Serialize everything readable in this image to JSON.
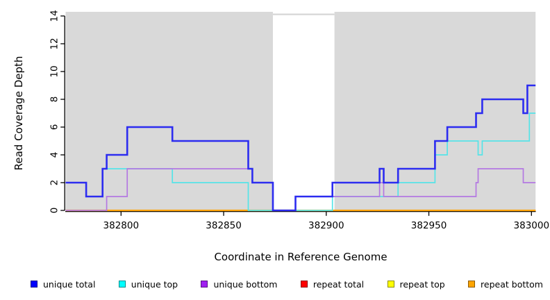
{
  "chart_data": {
    "type": "line",
    "subtype": "step",
    "title": "",
    "xlabel": "Coordinate in Reference Genome",
    "ylabel": "Read Coverage Depth",
    "xlim": [
      382772,
      383002
    ],
    "ylim": [
      0,
      14.3
    ],
    "x_ticks": [
      "382800",
      "382850",
      "382900",
      "382950",
      "383000"
    ],
    "x_tick_values": [
      382800,
      382850,
      382900,
      382950,
      383000
    ],
    "y_ticks": [
      "0",
      "2",
      "4",
      "6",
      "8",
      "10",
      "12",
      "14"
    ],
    "y_tick_values": [
      0,
      2,
      4,
      6,
      8,
      10,
      12,
      14
    ],
    "grid": false,
    "legend_position": "bottom",
    "background": {
      "band_color": "#d9d9d9",
      "shaded_regions": [
        [
          382773,
          382874
        ],
        [
          382904,
          383002
        ]
      ],
      "white_gap": [
        382874,
        382904
      ]
    },
    "draw_order": [
      "repeat total",
      "repeat top",
      "repeat bottom",
      "unique top",
      "unique bottom",
      "unique total"
    ],
    "series": [
      {
        "name": "unique total",
        "color": "#2c2cf0",
        "width": 2.6,
        "x_end": 383002,
        "points": [
          [
            382773,
            2
          ],
          [
            382783,
            1
          ],
          [
            382791,
            3
          ],
          [
            382793,
            4
          ],
          [
            382803,
            6
          ],
          [
            382825,
            5
          ],
          [
            382862,
            3
          ],
          [
            382864,
            2
          ],
          [
            382874,
            0
          ],
          [
            382885,
            1
          ],
          [
            382903,
            2
          ],
          [
            382926,
            3
          ],
          [
            382928,
            2
          ],
          [
            382935,
            3
          ],
          [
            382953,
            5
          ],
          [
            382959,
            6
          ],
          [
            382973,
            7
          ],
          [
            382976,
            8
          ],
          [
            382996,
            7
          ],
          [
            382998,
            9
          ]
        ]
      },
      {
        "name": "unique top",
        "color": "#55e4e8",
        "width": 1.7,
        "x_end": 383002,
        "points": [
          [
            382773,
            2
          ],
          [
            382783,
            1
          ],
          [
            382791,
            3
          ],
          [
            382825,
            2
          ],
          [
            382862,
            0
          ],
          [
            382903,
            1
          ],
          [
            382935,
            2
          ],
          [
            382953,
            4
          ],
          [
            382959,
            5
          ],
          [
            382974,
            4
          ],
          [
            382976,
            5
          ],
          [
            382999,
            7
          ]
        ]
      },
      {
        "name": "unique bottom",
        "color": "#b478e2",
        "width": 1.7,
        "x_end": 383002,
        "points": [
          [
            382773,
            0
          ],
          [
            382793,
            1
          ],
          [
            382803,
            3
          ],
          [
            382864,
            2
          ],
          [
            382874,
            0
          ],
          [
            382885,
            1
          ],
          [
            382926,
            2
          ],
          [
            382928,
            1
          ],
          [
            382973,
            2
          ],
          [
            382974,
            3
          ],
          [
            382996,
            2
          ]
        ]
      },
      {
        "name": "repeat total",
        "color": "#ee0000",
        "width": 1.6,
        "x_end": 383002,
        "points": [
          [
            382773,
            0
          ]
        ]
      },
      {
        "name": "repeat top",
        "color": "#ffff00",
        "width": 1.6,
        "x_end": 383002,
        "points": [
          [
            382773,
            0
          ]
        ]
      },
      {
        "name": "repeat bottom",
        "color": "#ffa500",
        "width": 2.2,
        "x_end": 383002,
        "points": [
          [
            382773,
            0
          ]
        ]
      }
    ]
  },
  "legend": {
    "items": [
      {
        "label": "unique total",
        "color": "#0000ff"
      },
      {
        "label": "unique top",
        "color": "#00ffff"
      },
      {
        "label": "unique bottom",
        "color": "#a020f0"
      },
      {
        "label": "repeat total",
        "color": "#ff0000"
      },
      {
        "label": "repeat top",
        "color": "#ffff00"
      },
      {
        "label": "repeat bottom",
        "color": "#ffa500"
      }
    ]
  },
  "axis_color": "#000000"
}
